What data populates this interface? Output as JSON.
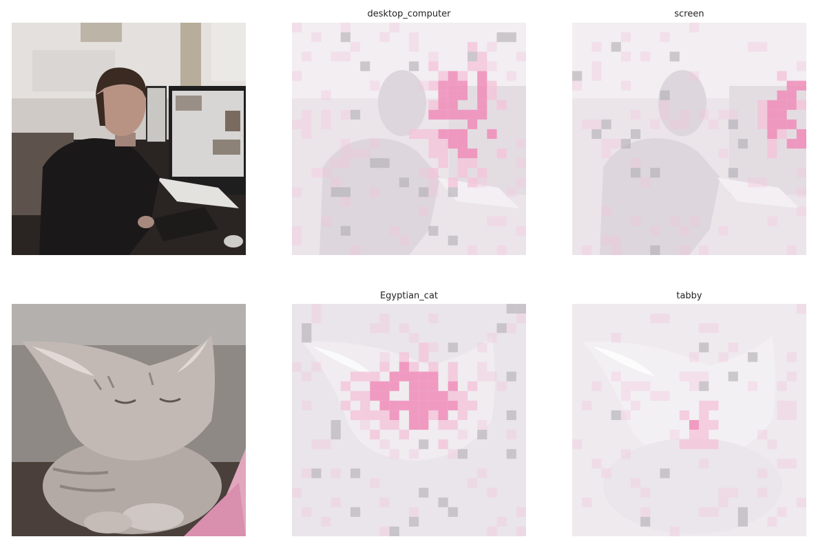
{
  "figure": {
    "rows": [
      {
        "source": "person-at-desktop-computer",
        "maps": [
          {
            "label": "desktop_computer",
            "focus": "upper-right"
          },
          {
            "label": "screen",
            "focus": "right"
          }
        ]
      },
      {
        "source": "tabby-cat",
        "maps": [
          {
            "label": "Egyptian_cat",
            "focus": "center"
          },
          {
            "label": "tabby",
            "focus": "sparse"
          }
        ]
      }
    ]
  },
  "colors": {
    "background": "#ffffff",
    "saliency_strong": "#f08cb8",
    "saliency_weak": "#f4c4da",
    "gray_patch": "#b0adb2",
    "overlay_wash": "#f4eef3"
  }
}
